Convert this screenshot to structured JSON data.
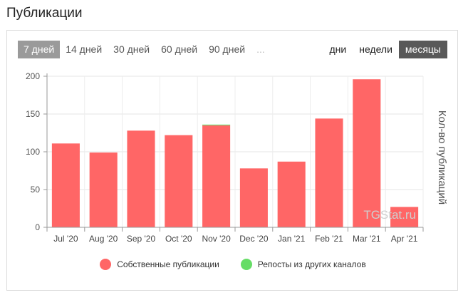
{
  "title": "Публикации",
  "range_tabs": [
    {
      "label": "7 дней",
      "active": true
    },
    {
      "label": "14 дней",
      "active": false
    },
    {
      "label": "30 дней",
      "active": false
    },
    {
      "label": "60 дней",
      "active": false
    },
    {
      "label": "90 дней",
      "active": false
    },
    {
      "label": "...",
      "active": false
    }
  ],
  "period_tabs": [
    {
      "label": "дни",
      "active": false
    },
    {
      "label": "недели",
      "active": false
    },
    {
      "label": "месяцы",
      "active": true
    }
  ],
  "watermark": "TGStat.ru",
  "colors": {
    "own": "#ff6666",
    "repost": "#66dd66",
    "active_range": "#9a9a9a",
    "active_period": "#595959"
  },
  "chart_data": {
    "type": "bar",
    "stacked": true,
    "categories": [
      "Jul '20",
      "Aug '20",
      "Sep '20",
      "Oct '20",
      "Nov '20",
      "Dec '20",
      "Jan '21",
      "Feb '21",
      "Mar '21",
      "Apr '21"
    ],
    "series": [
      {
        "name": "Собственные публикации",
        "values": [
          111,
          99,
          128,
          122,
          135,
          78,
          87,
          144,
          196,
          27
        ]
      },
      {
        "name": "Репосты из других каналов",
        "values": [
          0,
          0,
          0,
          0,
          1,
          0,
          0,
          0,
          0,
          0
        ]
      }
    ],
    "ylabel": "Кол-во публикаций",
    "ylim": [
      0,
      200
    ],
    "yticks": [
      0,
      50,
      100,
      150,
      200
    ],
    "grid": true,
    "legend": "bottom"
  }
}
